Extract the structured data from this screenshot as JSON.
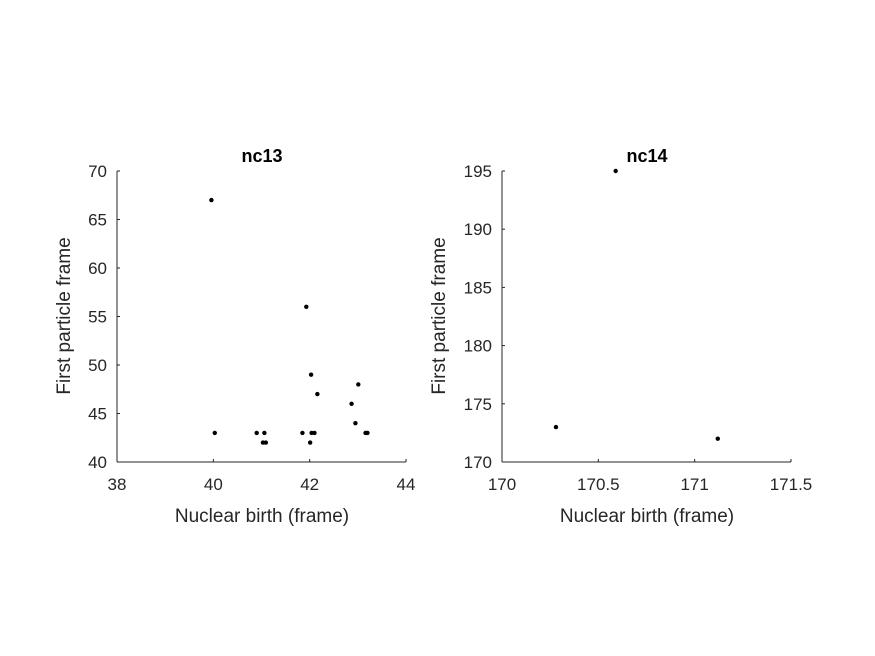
{
  "chart_data": [
    {
      "type": "scatter",
      "title": "nc13",
      "xlabel": "Nuclear birth (frame)",
      "ylabel": "First particle frame",
      "xlim": [
        38,
        44
      ],
      "ylim": [
        40,
        70
      ],
      "xticks": [
        "38",
        "40",
        "42",
        "44"
      ],
      "yticks": [
        "40",
        "45",
        "50",
        "55",
        "60",
        "65",
        "70"
      ],
      "xtick_values": [
        38,
        40,
        42,
        44
      ],
      "ytick_values": [
        40,
        45,
        50,
        55,
        60,
        65,
        70
      ],
      "grid": false,
      "marker_color": "#000000",
      "points": [
        {
          "x": 39.96,
          "y": 67
        },
        {
          "x": 40.03,
          "y": 43
        },
        {
          "x": 40.9,
          "y": 43
        },
        {
          "x": 41.03,
          "y": 42
        },
        {
          "x": 41.06,
          "y": 43
        },
        {
          "x": 41.09,
          "y": 42
        },
        {
          "x": 41.85,
          "y": 43
        },
        {
          "x": 41.93,
          "y": 56
        },
        {
          "x": 42.01,
          "y": 42
        },
        {
          "x": 42.03,
          "y": 49
        },
        {
          "x": 42.04,
          "y": 43
        },
        {
          "x": 42.1,
          "y": 43
        },
        {
          "x": 42.16,
          "y": 47
        },
        {
          "x": 42.87,
          "y": 46
        },
        {
          "x": 42.95,
          "y": 44
        },
        {
          "x": 43.01,
          "y": 48
        },
        {
          "x": 43.16,
          "y": 43
        },
        {
          "x": 43.2,
          "y": 43
        }
      ]
    },
    {
      "type": "scatter",
      "title": "nc14",
      "xlabel": "Nuclear birth (frame)",
      "ylabel": "First particle frame",
      "xlim": [
        170,
        171.5
      ],
      "ylim": [
        170,
        195
      ],
      "xticks": [
        "170",
        "170.5",
        "171",
        "171.5"
      ],
      "yticks": [
        "170",
        "175",
        "180",
        "185",
        "190",
        "195"
      ],
      "xtick_values": [
        170,
        170.5,
        171,
        171.5
      ],
      "ytick_values": [
        170,
        175,
        180,
        185,
        190,
        195
      ],
      "grid": false,
      "marker_color": "#000000",
      "points": [
        {
          "x": 170.28,
          "y": 173
        },
        {
          "x": 170.59,
          "y": 195
        },
        {
          "x": 171.12,
          "y": 172
        }
      ]
    }
  ]
}
